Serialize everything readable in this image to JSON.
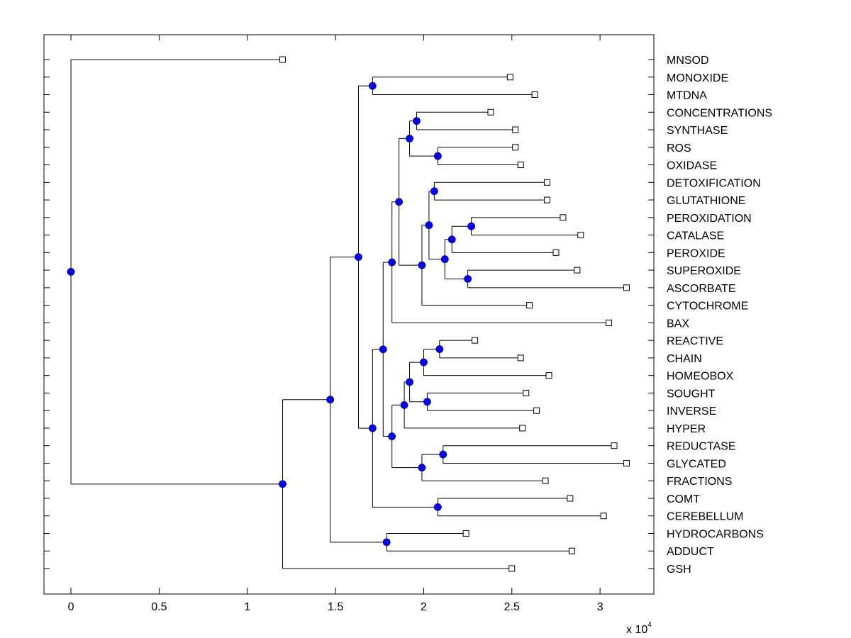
{
  "chart_data": {
    "type": "dendrogram",
    "title": "",
    "xlabel": "",
    "ylabel": "",
    "x_multiplier_label": "x 10",
    "x_multiplier_exponent": "4",
    "xlim": [
      -0.153,
      3.305
    ],
    "x_ticks": [
      0,
      0.5,
      1,
      1.5,
      2,
      2.5,
      3
    ],
    "x_tick_labels": [
      "0",
      "0.5",
      "1",
      "1.5",
      "2",
      "2.5",
      "3"
    ],
    "grid": false,
    "colors": {
      "node_fill": "#0000ff",
      "line": "#000000",
      "leaf_fill": "#ffffff"
    },
    "leaves": [
      {
        "label": "MNSOD",
        "value": 1.2
      },
      {
        "label": "MONOXIDE",
        "value": 2.49
      },
      {
        "label": "MTDNA",
        "value": 2.63
      },
      {
        "label": "CONCENTRATIONS",
        "value": 2.38
      },
      {
        "label": "SYNTHASE",
        "value": 2.52
      },
      {
        "label": "ROS",
        "value": 2.52
      },
      {
        "label": "OXIDASE",
        "value": 2.55
      },
      {
        "label": "DETOXIFICATION",
        "value": 2.7
      },
      {
        "label": "GLUTATHIONE",
        "value": 2.7
      },
      {
        "label": "PEROXIDATION",
        "value": 2.79
      },
      {
        "label": "CATALASE",
        "value": 2.89
      },
      {
        "label": "PEROXIDE",
        "value": 2.75
      },
      {
        "label": "SUPEROXIDE",
        "value": 2.87
      },
      {
        "label": "ASCORBATE",
        "value": 3.15
      },
      {
        "label": "CYTOCHROME",
        "value": 2.6
      },
      {
        "label": "BAX",
        "value": 3.05
      },
      {
        "label": "REACTIVE",
        "value": 2.29
      },
      {
        "label": "CHAIN",
        "value": 2.55
      },
      {
        "label": "HOMEOBOX",
        "value": 2.71
      },
      {
        "label": "SOUGHT",
        "value": 2.58
      },
      {
        "label": "INVERSE",
        "value": 2.64
      },
      {
        "label": "HYPER",
        "value": 2.56
      },
      {
        "label": "REDUCTASE",
        "value": 3.08
      },
      {
        "label": "GLYCATED",
        "value": 3.15
      },
      {
        "label": "FRACTIONS",
        "value": 2.69
      },
      {
        "label": "COMT",
        "value": 2.83
      },
      {
        "label": "CEREBELLUM",
        "value": 3.02
      },
      {
        "label": "HYDROCARBONS",
        "value": 2.24
      },
      {
        "label": "ADDUCT",
        "value": 2.84
      },
      {
        "label": "GSH",
        "value": 2.5
      }
    ],
    "tree": {
      "value": 0,
      "children": [
        {
          "leaf": 0
        },
        {
          "value": 1.2,
          "children": [
            {
              "value": 1.47,
              "children": [
                {
                  "value": 1.63,
                  "children": [
                    {
                      "value": 1.71,
                      "children": [
                        {
                          "leaf": 1
                        },
                        {
                          "leaf": 2
                        }
                      ]
                    },
                    {
                      "value": 1.71,
                      "children": [
                        {
                          "value": 1.77,
                          "children": [
                            {
                              "value": 1.82,
                              "children": [
                                {
                                  "value": 1.86,
                                  "children": [
                                    {
                                      "value": 1.92,
                                      "children": [
                                        {
                                          "value": 1.96,
                                          "children": [
                                            {
                                              "leaf": 3
                                            },
                                            {
                                              "leaf": 4
                                            }
                                          ]
                                        },
                                        {
                                          "value": 2.08,
                                          "children": [
                                            {
                                              "leaf": 5
                                            },
                                            {
                                              "leaf": 6
                                            }
                                          ]
                                        }
                                      ]
                                    },
                                    {
                                      "value": 1.99,
                                      "children": [
                                        {
                                          "value": 2.03,
                                          "children": [
                                            {
                                              "value": 2.06,
                                              "children": [
                                                {
                                                  "leaf": 7
                                                },
                                                {
                                                  "leaf": 8
                                                }
                                              ]
                                            },
                                            {
                                              "value": 2.12,
                                              "children": [
                                                {
                                                  "value": 2.16,
                                                  "children": [
                                                    {
                                                      "value": 2.27,
                                                      "children": [
                                                        {
                                                          "leaf": 9
                                                        },
                                                        {
                                                          "leaf": 10
                                                        }
                                                      ]
                                                    },
                                                    {
                                                      "leaf": 11
                                                    }
                                                  ]
                                                },
                                                {
                                                  "value": 2.25,
                                                  "children": [
                                                    {
                                                      "leaf": 12
                                                    },
                                                    {
                                                      "leaf": 13
                                                    }
                                                  ]
                                                }
                                              ]
                                            }
                                          ]
                                        },
                                        {
                                          "leaf": 14
                                        }
                                      ]
                                    }
                                  ]
                                },
                                {
                                  "leaf": 15
                                }
                              ]
                            },
                            {
                              "value": 1.82,
                              "children": [
                                {
                                  "value": 1.89,
                                  "children": [
                                    {
                                      "value": 1.92,
                                      "children": [
                                        {
                                          "value": 2.0,
                                          "children": [
                                            {
                                              "value": 2.09,
                                              "children": [
                                                {
                                                  "leaf": 16
                                                },
                                                {
                                                  "leaf": 17
                                                }
                                              ]
                                            },
                                            {
                                              "leaf": 18
                                            }
                                          ]
                                        },
                                        {
                                          "value": 2.02,
                                          "children": [
                                            {
                                              "leaf": 19
                                            },
                                            {
                                              "leaf": 20
                                            }
                                          ]
                                        }
                                      ]
                                    },
                                    {
                                      "leaf": 21
                                    }
                                  ]
                                },
                                {
                                  "value": 1.99,
                                  "children": [
                                    {
                                      "value": 2.11,
                                      "children": [
                                        {
                                          "leaf": 22
                                        },
                                        {
                                          "leaf": 23
                                        }
                                      ]
                                    },
                                    {
                                      "leaf": 24
                                    }
                                  ]
                                }
                              ]
                            }
                          ]
                        },
                        {
                          "value": 2.08,
                          "children": [
                            {
                              "leaf": 25
                            },
                            {
                              "leaf": 26
                            }
                          ]
                        }
                      ]
                    }
                  ]
                },
                {
                  "value": 1.79,
                  "children": [
                    {
                      "leaf": 27
                    },
                    {
                      "leaf": 28
                    }
                  ]
                }
              ]
            },
            {
              "leaf": 29
            }
          ]
        }
      ]
    }
  }
}
